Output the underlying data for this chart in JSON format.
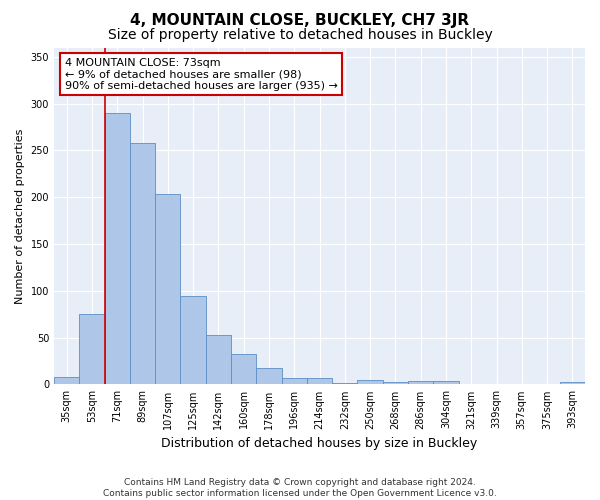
{
  "title": "4, MOUNTAIN CLOSE, BUCKLEY, CH7 3JR",
  "subtitle": "Size of property relative to detached houses in Buckley",
  "xlabel": "Distribution of detached houses by size in Buckley",
  "ylabel": "Number of detached properties",
  "categories": [
    "35sqm",
    "53sqm",
    "71sqm",
    "89sqm",
    "107sqm",
    "125sqm",
    "142sqm",
    "160sqm",
    "178sqm",
    "196sqm",
    "214sqm",
    "232sqm",
    "250sqm",
    "268sqm",
    "286sqm",
    "304sqm",
    "321sqm",
    "339sqm",
    "357sqm",
    "375sqm",
    "393sqm"
  ],
  "values": [
    8,
    75,
    290,
    258,
    203,
    95,
    53,
    32,
    18,
    7,
    7,
    1,
    5,
    3,
    4,
    4,
    0,
    0,
    0,
    0,
    3
  ],
  "bar_color": "#aec6e8",
  "bar_edge_color": "#5b8ec4",
  "background_color": "#e8eef7",
  "annotation_line1": "4 MOUNTAIN CLOSE: 73sqm",
  "annotation_line2": "← 9% of detached houses are smaller (98)",
  "annotation_line3": "90% of semi-detached houses are larger (935) →",
  "annotation_box_color": "#ffffff",
  "annotation_box_edge_color": "#cc0000",
  "vline_color": "#cc0000",
  "vline_x_index": 2,
  "ylim": [
    0,
    360
  ],
  "yticks": [
    0,
    50,
    100,
    150,
    200,
    250,
    300,
    350
  ],
  "footer": "Contains HM Land Registry data © Crown copyright and database right 2024.\nContains public sector information licensed under the Open Government Licence v3.0.",
  "title_fontsize": 11,
  "subtitle_fontsize": 10,
  "xlabel_fontsize": 9,
  "ylabel_fontsize": 8,
  "tick_fontsize": 7,
  "annotation_fontsize": 8,
  "footer_fontsize": 6.5
}
